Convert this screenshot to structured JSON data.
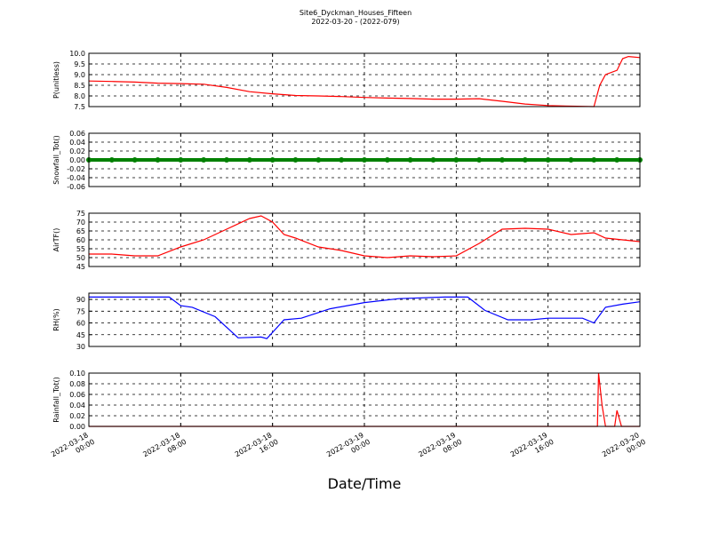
{
  "chart_data": [
    {
      "type": "line",
      "title": "Site6_Dyckman_Houses_Fifteen",
      "subtitle": "2022-03-20 - (2022-079)",
      "ylabel": "P(unitless)",
      "color": "#ff0000",
      "x": [
        "2022-03-18 00:00",
        "2022-03-18 02:00",
        "2022-03-18 04:00",
        "2022-03-18 06:00",
        "2022-03-18 08:00",
        "2022-03-18 10:00",
        "2022-03-18 12:00",
        "2022-03-18 14:00",
        "2022-03-18 16:00",
        "2022-03-18 18:00",
        "2022-03-18 20:00",
        "2022-03-18 22:00",
        "2022-03-19 00:00",
        "2022-03-19 02:00",
        "2022-03-19 04:00",
        "2022-03-19 06:00",
        "2022-03-19 08:00",
        "2022-03-19 10:00",
        "2022-03-19 12:00",
        "2022-03-19 14:00",
        "2022-03-19 16:00",
        "2022-03-19 18:00",
        "2022-03-19 20:00",
        "2022-03-19 20:30",
        "2022-03-19 21:00",
        "2022-03-19 22:00",
        "2022-03-19 22:30",
        "2022-03-19 23:00",
        "2022-03-20 00:00"
      ],
      "values": [
        8.7,
        8.68,
        8.65,
        8.6,
        8.58,
        8.55,
        8.4,
        8.2,
        8.1,
        8.02,
        8.0,
        7.97,
        7.93,
        7.9,
        7.88,
        7.85,
        7.85,
        7.87,
        7.75,
        7.62,
        7.55,
        7.52,
        7.5,
        8.5,
        9.0,
        9.2,
        9.75,
        9.85,
        9.8
      ],
      "ylim": [
        7.5,
        10
      ],
      "yticks": [
        7.5,
        {
          "value": 8,
          "label": "8.0"
        },
        8.5,
        {
          "value": 9,
          "label": "9.0"
        },
        9.5,
        {
          "value": 10,
          "label": "10.0"
        }
      ],
      "grid": true
    },
    {
      "type": "line",
      "ylabel": "Snowfall_Tot()",
      "color": "#008000",
      "marker": "o",
      "x": [
        "2022-03-18 00:00",
        "2022-03-18 02:00",
        "2022-03-18 04:00",
        "2022-03-18 06:00",
        "2022-03-18 08:00",
        "2022-03-18 10:00",
        "2022-03-18 12:00",
        "2022-03-18 14:00",
        "2022-03-18 16:00",
        "2022-03-18 18:00",
        "2022-03-18 20:00",
        "2022-03-18 22:00",
        "2022-03-19 00:00",
        "2022-03-19 02:00",
        "2022-03-19 04:00",
        "2022-03-19 06:00",
        "2022-03-19 08:00",
        "2022-03-19 10:00",
        "2022-03-19 12:00",
        "2022-03-19 14:00",
        "2022-03-19 16:00",
        "2022-03-19 18:00",
        "2022-03-19 20:00",
        "2022-03-19 22:00",
        "2022-03-20 00:00"
      ],
      "values": [
        0,
        0,
        0,
        0,
        0,
        0,
        0,
        0,
        0,
        0,
        0,
        0,
        0,
        0,
        0,
        0,
        0,
        0,
        0,
        0,
        0,
        0,
        0,
        0,
        0
      ],
      "ylim": [
        -0.06,
        0.06
      ],
      "yticks": [
        -0.06,
        -0.04,
        -0.02,
        {
          "value": 0,
          "label": "0.00"
        },
        0.02,
        0.04,
        0.06
      ],
      "grid": true
    },
    {
      "type": "line",
      "ylabel": "AirTF()",
      "color": "#ff0000",
      "x": [
        "2022-03-18 00:00",
        "2022-03-18 02:00",
        "2022-03-18 04:00",
        "2022-03-18 06:00",
        "2022-03-18 08:00",
        "2022-03-18 10:00",
        "2022-03-18 12:00",
        "2022-03-18 14:00",
        "2022-03-18 15:00",
        "2022-03-18 16:00",
        "2022-03-18 17:00",
        "2022-03-18 18:00",
        "2022-03-18 20:00",
        "2022-03-18 22:00",
        "2022-03-19 00:00",
        "2022-03-19 02:00",
        "2022-03-19 04:00",
        "2022-03-19 06:00",
        "2022-03-19 08:00",
        "2022-03-19 10:00",
        "2022-03-19 12:00",
        "2022-03-19 14:00",
        "2022-03-19 16:00",
        "2022-03-19 18:00",
        "2022-03-19 20:00",
        "2022-03-19 21:00",
        "2022-03-20 00:00"
      ],
      "values": [
        52,
        52,
        51,
        51,
        56,
        60,
        66,
        72,
        73.5,
        70,
        63,
        61,
        56,
        54,
        51,
        50,
        51,
        50.5,
        51,
        58,
        66,
        66.5,
        66,
        63,
        64,
        61,
        59
      ],
      "ylim": [
        45,
        75
      ],
      "yticks": [
        45,
        50,
        55,
        60,
        65,
        70,
        75
      ],
      "grid": true
    },
    {
      "type": "line",
      "ylabel": "RH(%)",
      "color": "#0000ff",
      "x": [
        "2022-03-18 00:00",
        "2022-03-18 07:00",
        "2022-03-18 08:00",
        "2022-03-18 09:00",
        "2022-03-18 11:00",
        "2022-03-18 13:00",
        "2022-03-18 15:00",
        "2022-03-18 15:30",
        "2022-03-18 16:00",
        "2022-03-18 17:00",
        "2022-03-18 18:30",
        "2022-03-18 21:00",
        "2022-03-19 00:00",
        "2022-03-19 03:00",
        "2022-03-19 07:00",
        "2022-03-19 09:00",
        "2022-03-19 10:30",
        "2022-03-19 12:30",
        "2022-03-19 14:30",
        "2022-03-19 16:00",
        "2022-03-19 19:00",
        "2022-03-19 20:00",
        "2022-03-19 21:00",
        "2022-03-19 22:30",
        "2022-03-20 00:00"
      ],
      "values": [
        93,
        93,
        82,
        80,
        68,
        41,
        42,
        40,
        48,
        64,
        66,
        78,
        86,
        91,
        93,
        93,
        76,
        64,
        64,
        66,
        66,
        60,
        80,
        84,
        87
      ],
      "ylim": [
        30,
        98
      ],
      "yticks": [
        30,
        45,
        60,
        75,
        90
      ],
      "grid": true
    },
    {
      "type": "line",
      "ylabel": "Rainfall_Tot()",
      "color": "#ff0000",
      "xlabel": "Date/Time",
      "x": [
        "2022-03-18 00:00",
        "2022-03-19 20:18",
        "2022-03-19 20:24",
        "2022-03-19 20:42",
        "2022-03-19 21:00",
        "2022-03-19 21:48",
        "2022-03-19 22:00",
        "2022-03-19 22:24",
        "2022-03-20 00:00"
      ],
      "values": [
        0,
        0,
        0.1,
        0.04,
        0,
        0,
        0.03,
        0,
        0
      ],
      "ylim": [
        0,
        0.1
      ],
      "yticks": [
        {
          "value": 0,
          "label": "0.00"
        },
        0.02,
        0.04,
        0.06,
        0.08,
        {
          "value": 0.1,
          "label": "0.10"
        }
      ],
      "grid": true,
      "xlim": [
        "2022-03-18 00:00",
        "2022-03-20 00:00"
      ],
      "xticks": [
        "2022-03-18 00:00",
        "2022-03-18 08:00",
        "2022-03-18 16:00",
        "2022-03-19 00:00",
        "2022-03-19 08:00",
        "2022-03-19 16:00",
        "2022-03-20 00:00"
      ]
    }
  ]
}
